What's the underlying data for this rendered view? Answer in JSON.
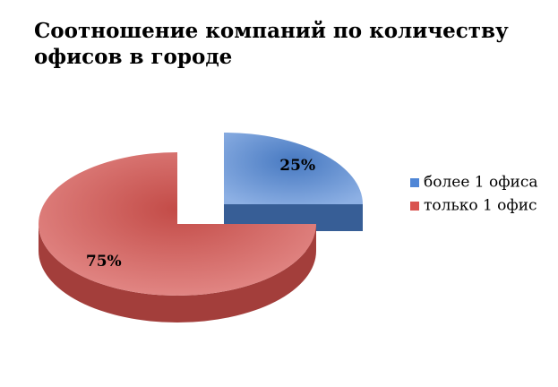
{
  "chart_data": {
    "type": "pie3d",
    "title": "Соотношение компаний по количеству офисов в городе",
    "categories": [
      "более 1 офиса",
      "только 1 офис"
    ],
    "values": [
      25,
      75
    ],
    "value_labels": [
      "25%",
      "75%"
    ],
    "colors": [
      "#4f86d6",
      "#d9534f"
    ],
    "exploded": [
      true,
      false
    ],
    "legend": "right"
  }
}
